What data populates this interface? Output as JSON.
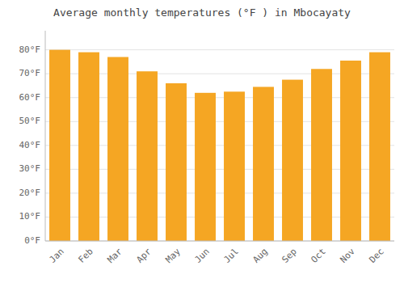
{
  "chart_data": {
    "type": "bar",
    "title": "Average monthly temperatures (°F ) in Mbocayaty",
    "categories": [
      "Jan",
      "Feb",
      "Mar",
      "Apr",
      "May",
      "Jun",
      "Jul",
      "Aug",
      "Sep",
      "Oct",
      "Nov",
      "Dec"
    ],
    "values": [
      80,
      79,
      77,
      71,
      66,
      62,
      62.5,
      64.5,
      67.5,
      72,
      75.5,
      79
    ],
    "color": "#F5A623",
    "ylim": [
      0,
      88
    ],
    "yticks": [
      {
        "value": 0,
        "label": "0°F"
      },
      {
        "value": 10,
        "label": "10°F"
      },
      {
        "value": 20,
        "label": "20°F"
      },
      {
        "value": 30,
        "label": "30°F"
      },
      {
        "value": 40,
        "label": "40°F"
      },
      {
        "value": 50,
        "label": "50°F"
      },
      {
        "value": 60,
        "label": "60°F"
      },
      {
        "value": 70,
        "label": "70°F"
      },
      {
        "value": 80,
        "label": "80°F"
      }
    ],
    "grid": true
  }
}
